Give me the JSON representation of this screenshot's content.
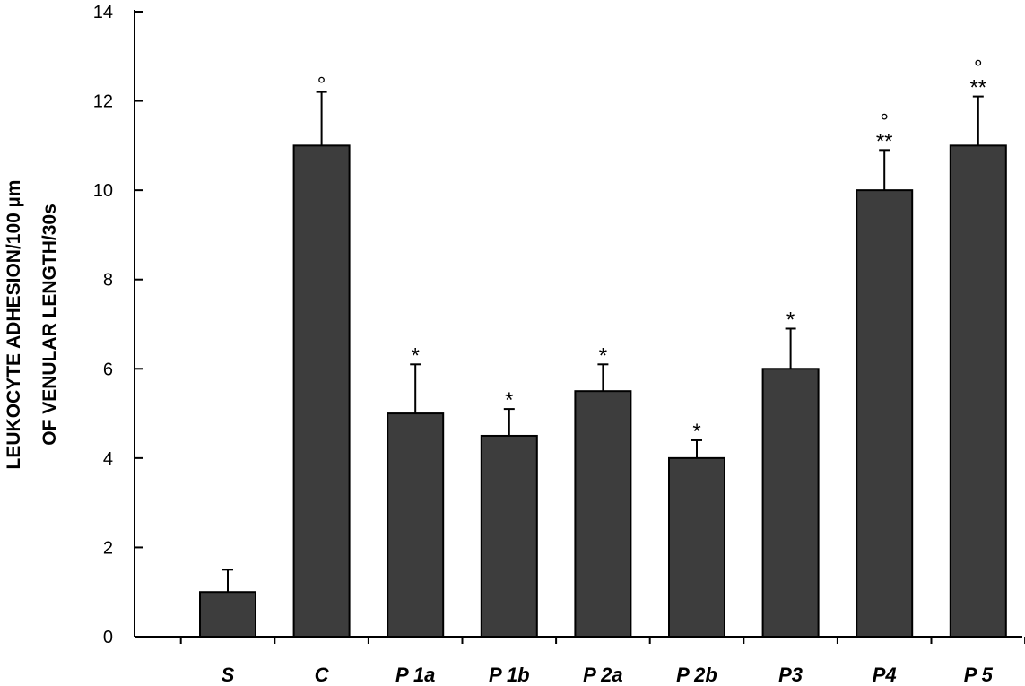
{
  "chart_data": {
    "type": "bar",
    "categories": [
      "S",
      "C",
      "P 1a",
      "P 1b",
      "P 2a",
      "P 2b",
      "P3",
      "P4",
      "P 5"
    ],
    "values": [
      1,
      11,
      5,
      4.5,
      5.5,
      4,
      6,
      10,
      11
    ],
    "errors": [
      0.5,
      1.2,
      1.1,
      0.6,
      0.6,
      0.4,
      0.9,
      0.9,
      1.1
    ],
    "annotations": [
      [],
      [
        "°"
      ],
      [
        "*"
      ],
      [
        "*"
      ],
      [
        "*"
      ],
      [
        "*"
      ],
      [
        "*"
      ],
      [
        "°",
        "**"
      ],
      [
        "°",
        "**"
      ]
    ],
    "ylabel_lines": [
      "LEUKOCYTE ADHESION/100 µm",
      "OF VENULAR LENGTH/30s"
    ],
    "xlabel": "",
    "ylim": [
      0,
      14
    ],
    "yticks": [
      0,
      2,
      4,
      6,
      8,
      10,
      12,
      14
    ],
    "grid": false,
    "bar_color": "#3d3d3d"
  }
}
